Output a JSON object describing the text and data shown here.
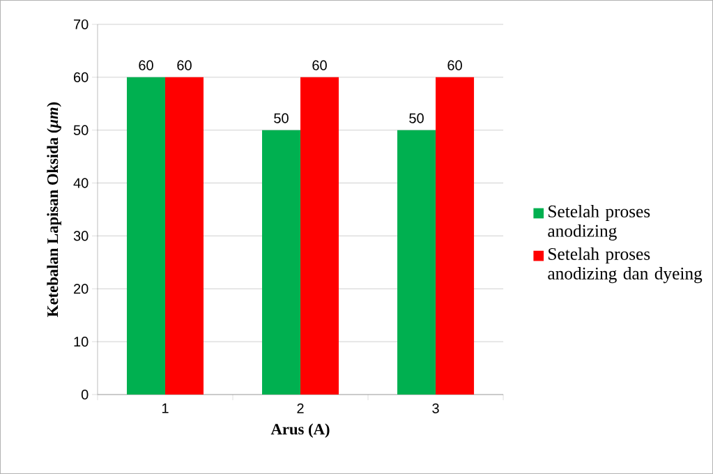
{
  "chart_data": {
    "type": "bar",
    "xlabel": "Arus (A)",
    "ylabel": "Ketebalan Lapisan Oksida (*μm*)",
    "categories": [
      "1",
      "2",
      "3"
    ],
    "series": [
      {
        "name": "Setelah proses anodizing",
        "color": "#00b050",
        "values": [
          60,
          50,
          50
        ]
      },
      {
        "name": "Setelah proses anodizing dan dyeing",
        "color": "#ff0000",
        "values": [
          60,
          60,
          60
        ]
      }
    ],
    "ylim": [
      0,
      70
    ],
    "yticks": [
      0,
      10,
      20,
      30,
      40,
      50,
      60,
      70
    ],
    "grid": "y",
    "legend": "right",
    "data_labels": true
  }
}
